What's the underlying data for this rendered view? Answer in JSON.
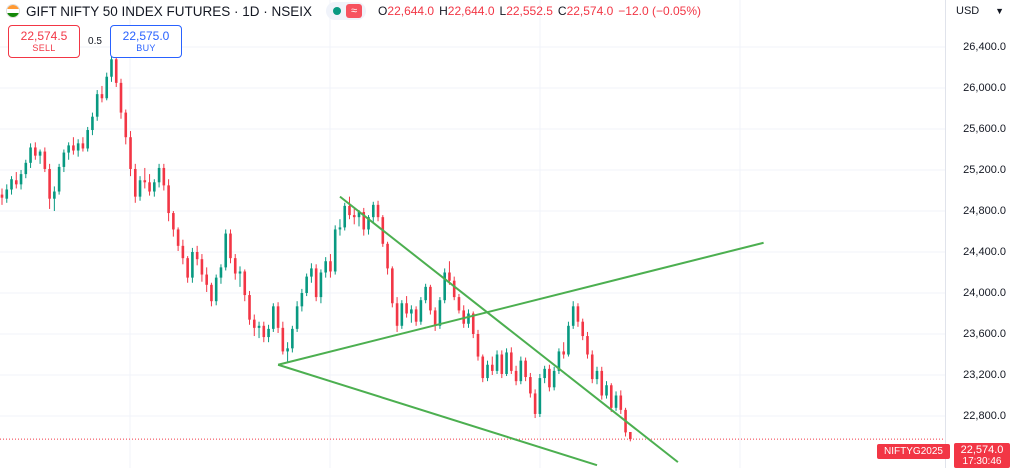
{
  "header": {
    "title": "GIFT NIFTY 50 INDEX FUTURES · 1D · NSEIX",
    "flag_icon": "india-flag-icon",
    "market_status_icon": "live-dot-icon",
    "wave_icon": "wave-icon",
    "ohlc": {
      "o_label": "O",
      "o_value": "22,644.0",
      "h_label": "H",
      "h_value": "22,644.0",
      "l_label": "L",
      "l_value": "22,552.5",
      "c_label": "C",
      "c_value": "22,574.0",
      "change": "−12.0 (−0.05%)"
    }
  },
  "trade": {
    "sell_price": "22,574.5",
    "sell_label": "SELL",
    "spread": "0.5",
    "buy_price": "22,575.0",
    "buy_label": "BUY"
  },
  "currency": "USD",
  "price_axis": {
    "ticks": [
      "26,400.0",
      "26,000.0",
      "25,600.0",
      "25,200.0",
      "24,800.0",
      "24,400.0",
      "24,000.0",
      "23,600.0",
      "23,200.0",
      "22,800.0"
    ]
  },
  "last_price_tag": {
    "symbol": "NIFTYG2025",
    "price": "22,574.0",
    "countdown": "17:30:46"
  },
  "colors": {
    "up": "#089981",
    "down": "#f23645",
    "trendline": "#4caf50",
    "grid": "#f0f3fa"
  },
  "chart_data": {
    "type": "candlestick",
    "y_axis_ticks": [
      26400,
      26000,
      25600,
      25200,
      24800,
      24400,
      24000,
      23600,
      23200,
      22800
    ],
    "last_price": 22574.0,
    "candles": [
      [
        24960,
        25020,
        24860,
        24930
      ],
      [
        24920,
        25060,
        24880,
        25010
      ],
      [
        25010,
        25140,
        24960,
        25110
      ],
      [
        25100,
        25180,
        25020,
        25060
      ],
      [
        25060,
        25200,
        25010,
        25160
      ],
      [
        25160,
        25300,
        25120,
        25270
      ],
      [
        25270,
        25460,
        25220,
        25420
      ],
      [
        25420,
        25470,
        25300,
        25340
      ],
      [
        25340,
        25400,
        25260,
        25380
      ],
      [
        25380,
        25420,
        25180,
        25210
      ],
      [
        25210,
        25260,
        24820,
        24920
      ],
      [
        24920,
        25040,
        24800,
        24990
      ],
      [
        24990,
        25260,
        24960,
        25230
      ],
      [
        25230,
        25400,
        25180,
        25370
      ],
      [
        25370,
        25470,
        25300,
        25440
      ],
      [
        25440,
        25520,
        25350,
        25390
      ],
      [
        25390,
        25500,
        25330,
        25460
      ],
      [
        25460,
        25520,
        25380,
        25410
      ],
      [
        25410,
        25620,
        25380,
        25590
      ],
      [
        25590,
        25760,
        25540,
        25720
      ],
      [
        25720,
        25980,
        25680,
        25940
      ],
      [
        25940,
        26020,
        25860,
        25900
      ],
      [
        25900,
        26150,
        25880,
        26110
      ],
      [
        26110,
        26330,
        26060,
        26280
      ],
      [
        26280,
        26320,
        26010,
        26050
      ],
      [
        26050,
        26090,
        25700,
        25760
      ],
      [
        25760,
        25790,
        25450,
        25520
      ],
      [
        25520,
        25580,
        25140,
        25210
      ],
      [
        25210,
        25260,
        24880,
        24940
      ],
      [
        24940,
        25140,
        24900,
        25100
      ],
      [
        25100,
        25220,
        25020,
        25080
      ],
      [
        25080,
        25160,
        24950,
        24990
      ],
      [
        24990,
        25110,
        24940,
        25080
      ],
      [
        25080,
        25260,
        25030,
        25220
      ],
      [
        25220,
        25260,
        25000,
        25050
      ],
      [
        25050,
        25110,
        24700,
        24780
      ],
      [
        24780,
        24800,
        24550,
        24620
      ],
      [
        24620,
        24640,
        24410,
        24460
      ],
      [
        24460,
        24520,
        24280,
        24340
      ],
      [
        24340,
        24360,
        24100,
        24150
      ],
      [
        24150,
        24440,
        24100,
        24400
      ],
      [
        24400,
        24460,
        24270,
        24330
      ],
      [
        24330,
        24380,
        24110,
        24180
      ],
      [
        24180,
        24250,
        24010,
        24080
      ],
      [
        24080,
        24100,
        23870,
        23920
      ],
      [
        23920,
        24180,
        23880,
        24150
      ],
      [
        24150,
        24280,
        24090,
        24250
      ],
      [
        24250,
        24620,
        24220,
        24580
      ],
      [
        24580,
        24620,
        24290,
        24340
      ],
      [
        24340,
        24380,
        24130,
        24190
      ],
      [
        24190,
        24260,
        24060,
        24210
      ],
      [
        24210,
        24230,
        23920,
        23980
      ],
      [
        23980,
        24020,
        23690,
        23740
      ],
      [
        23740,
        23790,
        23580,
        23660
      ],
      [
        23660,
        23720,
        23560,
        23680
      ],
      [
        23680,
        23720,
        23520,
        23570
      ],
      [
        23570,
        23690,
        23520,
        23650
      ],
      [
        23650,
        23900,
        23620,
        23870
      ],
      [
        23870,
        23910,
        23610,
        23660
      ],
      [
        23660,
        23720,
        23400,
        23430
      ],
      [
        23430,
        23520,
        23320,
        23460
      ],
      [
        23460,
        23680,
        23420,
        23650
      ],
      [
        23650,
        23920,
        23620,
        23870
      ],
      [
        23870,
        24040,
        23820,
        24000
      ],
      [
        24000,
        24190,
        23970,
        24160
      ],
      [
        24160,
        24290,
        24100,
        24240
      ],
      [
        24240,
        24280,
        23920,
        23960
      ],
      [
        23960,
        24230,
        23900,
        24200
      ],
      [
        24200,
        24350,
        24150,
        24310
      ],
      [
        24310,
        24380,
        24150,
        24210
      ],
      [
        24210,
        24660,
        24180,
        24620
      ],
      [
        24620,
        24720,
        24560,
        24640
      ],
      [
        24640,
        24880,
        24610,
        24850
      ],
      [
        24850,
        24940,
        24720,
        24760
      ],
      [
        24760,
        24820,
        24670,
        24740
      ],
      [
        24740,
        24810,
        24650,
        24790
      ],
      [
        24790,
        24830,
        24560,
        24620
      ],
      [
        24620,
        24760,
        24570,
        24740
      ],
      [
        24740,
        24890,
        24690,
        24860
      ],
      [
        24860,
        24900,
        24700,
        24740
      ],
      [
        24740,
        24760,
        24450,
        24480
      ],
      [
        24480,
        24500,
        24180,
        24240
      ],
      [
        24240,
        24260,
        23860,
        23900
      ],
      [
        23900,
        23960,
        23620,
        23680
      ],
      [
        23680,
        23930,
        23650,
        23900
      ],
      [
        23900,
        23970,
        23760,
        23800
      ],
      [
        23800,
        23880,
        23710,
        23840
      ],
      [
        23840,
        23870,
        23680,
        23720
      ],
      [
        23720,
        23960,
        23690,
        23930
      ],
      [
        23930,
        24090,
        23900,
        24060
      ],
      [
        24060,
        24080,
        23790,
        23830
      ],
      [
        23830,
        23860,
        23630,
        23680
      ],
      [
        23680,
        23960,
        23650,
        23930
      ],
      [
        23930,
        24240,
        23900,
        24200
      ],
      [
        24200,
        24310,
        24080,
        24120
      ],
      [
        24120,
        24160,
        23930,
        23960
      ],
      [
        23960,
        23990,
        23800,
        23830
      ],
      [
        23830,
        23880,
        23660,
        23700
      ],
      [
        23700,
        23840,
        23660,
        23800
      ],
      [
        23800,
        23820,
        23560,
        23600
      ],
      [
        23600,
        23640,
        23340,
        23380
      ],
      [
        23380,
        23400,
        23130,
        23170
      ],
      [
        23170,
        23340,
        23140,
        23300
      ],
      [
        23300,
        23380,
        23200,
        23240
      ],
      [
        23240,
        23440,
        23210,
        23400
      ],
      [
        23400,
        23440,
        23170,
        23210
      ],
      [
        23210,
        23460,
        23190,
        23420
      ],
      [
        23420,
        23470,
        23210,
        23240
      ],
      [
        23240,
        23290,
        23100,
        23140
      ],
      [
        23140,
        23380,
        23110,
        23340
      ],
      [
        23340,
        23370,
        23140,
        23180
      ],
      [
        23180,
        23220,
        22980,
        23020
      ],
      [
        23020,
        23060,
        22780,
        22820
      ],
      [
        22820,
        23210,
        22790,
        23170
      ],
      [
        23170,
        23290,
        23120,
        23260
      ],
      [
        23260,
        23300,
        23040,
        23080
      ],
      [
        23080,
        23280,
        23050,
        23240
      ],
      [
        23240,
        23460,
        23210,
        23430
      ],
      [
        23430,
        23520,
        23360,
        23400
      ],
      [
        23400,
        23720,
        23380,
        23680
      ],
      [
        23680,
        23920,
        23650,
        23870
      ],
      [
        23870,
        23900,
        23670,
        23720
      ],
      [
        23720,
        23750,
        23540,
        23580
      ],
      [
        23580,
        23620,
        23360,
        23400
      ],
      [
        23400,
        23440,
        23120,
        23160
      ],
      [
        23160,
        23280,
        23110,
        23240
      ],
      [
        23240,
        23280,
        22960,
        23000
      ],
      [
        23000,
        23140,
        22970,
        23100
      ],
      [
        23100,
        23120,
        22840,
        22880
      ],
      [
        22880,
        23040,
        22850,
        23000
      ],
      [
        23000,
        23050,
        22820,
        22860
      ],
      [
        22860,
        22880,
        22600,
        22640
      ],
      [
        22644,
        22644,
        22552.5,
        22574
      ]
    ],
    "trendlines": [
      {
        "from": {
          "bar": 71,
          "price": 24940
        },
        "to": {
          "bar": 142,
          "price": 22350
        }
      },
      {
        "from": {
          "bar": 58,
          "price": 23300
        },
        "to": {
          "bar": 125,
          "price": 22320
        }
      },
      {
        "from": {
          "bar": 58,
          "price": 23300
        },
        "to": {
          "bar": 160,
          "price": 24490
        }
      }
    ]
  }
}
